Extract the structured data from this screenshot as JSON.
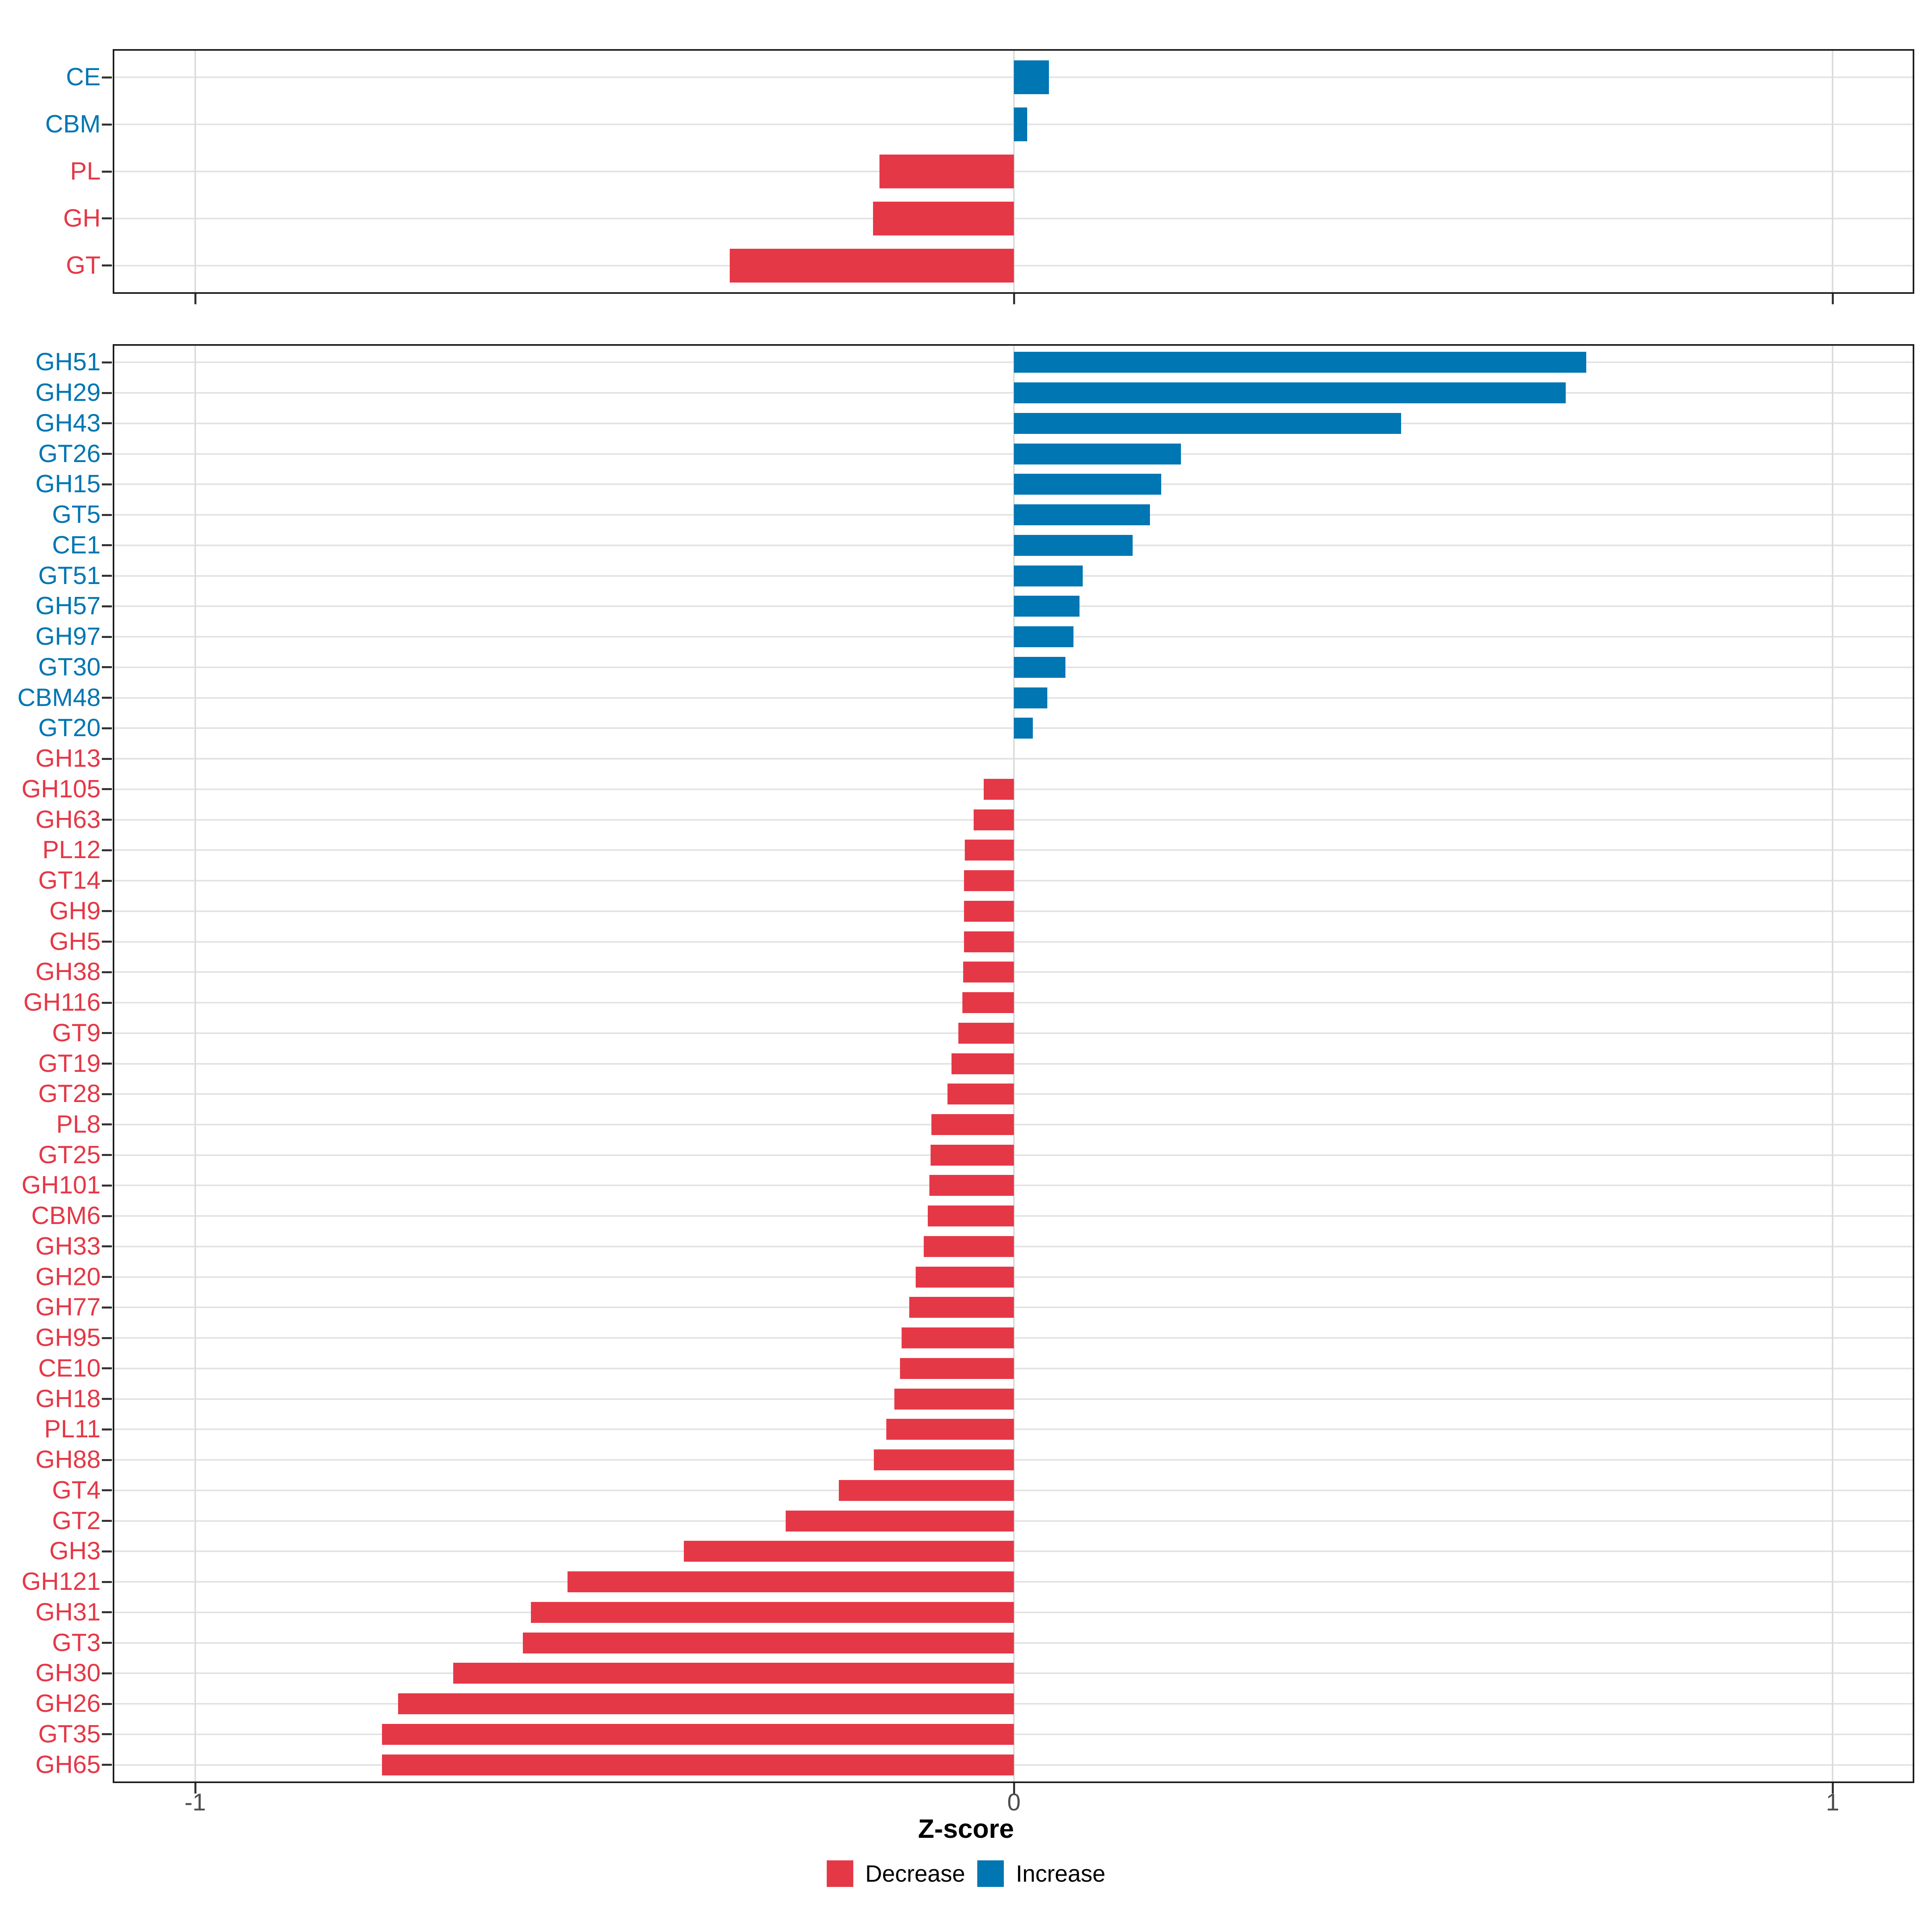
{
  "axis": {
    "xlabel": "Z-score",
    "ticks": [
      {
        "value": -1,
        "label": "-1"
      },
      {
        "value": 0,
        "label": "0"
      },
      {
        "value": 1,
        "label": "1"
      }
    ]
  },
  "legend": {
    "items": [
      {
        "group": "decrease",
        "label": "Decrease"
      },
      {
        "group": "increase",
        "label": "Increase"
      }
    ]
  },
  "colors": {
    "decrease": "#e53847",
    "increase": "#0076b3",
    "grid_h": "#e3e3e3",
    "grid_v": "#dcdcdc",
    "border": "#1c1c1c",
    "tick": "#333333",
    "tick_label": "#4d4d4d",
    "axis_label": "#000000",
    "background": "#ffffff"
  },
  "chart_data": [
    {
      "type": "bar",
      "orientation": "horizontal",
      "panel": "top",
      "title": "",
      "xlabel": "Z-score",
      "xlim": [
        -1.1,
        1.1
      ],
      "grid": true,
      "legend_position": "none",
      "categories": [
        "CE",
        "CBM",
        "PL",
        "GH",
        "GT"
      ],
      "values": [
        0.043,
        0.016,
        -0.164,
        -0.172,
        -0.347
      ],
      "groups": [
        "increase",
        "increase",
        "decrease",
        "decrease",
        "decrease"
      ]
    },
    {
      "type": "bar",
      "orientation": "horizontal",
      "panel": "bottom",
      "title": "",
      "xlabel": "Z-score",
      "xlim": [
        -1.1,
        1.1
      ],
      "grid": true,
      "legend_position": "bottom",
      "categories": [
        "GH51",
        "GH29",
        "GH43",
        "GT26",
        "GH15",
        "GT5",
        "CE1",
        "GT51",
        "GH57",
        "GH97",
        "GT30",
        "CBM48",
        "GT20",
        "GH13",
        "GH105",
        "GH63",
        "PL12",
        "GT14",
        "GH9",
        "GH5",
        "GH38",
        "GH116",
        "GT9",
        "GT19",
        "GT28",
        "PL8",
        "GT25",
        "GH101",
        "CBM6",
        "GH33",
        "GH20",
        "GH77",
        "GH95",
        "CE10",
        "GH18",
        "PL11",
        "GH88",
        "GT4",
        "GT2",
        "GH3",
        "GH121",
        "GH31",
        "GT3",
        "GH30",
        "GH26",
        "GT35",
        "GH65"
      ],
      "values": [
        0.699,
        0.674,
        0.473,
        0.204,
        0.18,
        0.166,
        0.145,
        0.084,
        0.08,
        0.073,
        0.063,
        0.041,
        0.023,
        0.0,
        -0.037,
        -0.049,
        -0.06,
        -0.061,
        -0.061,
        -0.061,
        -0.062,
        -0.063,
        -0.068,
        -0.076,
        -0.081,
        -0.101,
        -0.102,
        -0.103,
        -0.105,
        -0.11,
        -0.12,
        -0.128,
        -0.137,
        -0.139,
        -0.146,
        -0.156,
        -0.171,
        -0.214,
        -0.279,
        -0.403,
        -0.545,
        -0.59,
        -0.6,
        -0.685,
        -0.752,
        -0.772,
        -0.772
      ],
      "groups": [
        "increase",
        "increase",
        "increase",
        "increase",
        "increase",
        "increase",
        "increase",
        "increase",
        "increase",
        "increase",
        "increase",
        "increase",
        "increase",
        "decrease",
        "decrease",
        "decrease",
        "decrease",
        "decrease",
        "decrease",
        "decrease",
        "decrease",
        "decrease",
        "decrease",
        "decrease",
        "decrease",
        "decrease",
        "decrease",
        "decrease",
        "decrease",
        "decrease",
        "decrease",
        "decrease",
        "decrease",
        "decrease",
        "decrease",
        "decrease",
        "decrease",
        "decrease",
        "decrease",
        "decrease",
        "decrease",
        "decrease",
        "decrease",
        "decrease",
        "decrease",
        "decrease",
        "decrease"
      ]
    }
  ]
}
